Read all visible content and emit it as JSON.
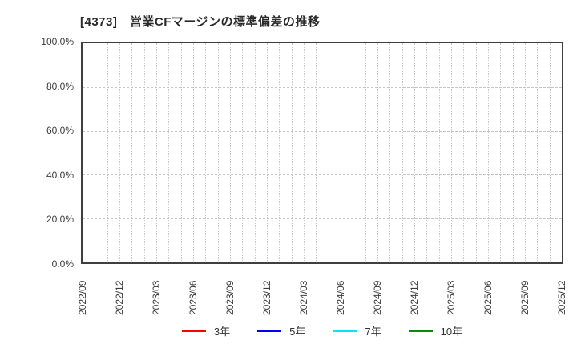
{
  "header": {
    "title": "[4373]　営業CFマージンの標準偏差の推移"
  },
  "chart_data": {
    "type": "line",
    "title": "[4373]　営業CFマージンの標準偏差の推移",
    "x_axis": {
      "tick_labels": [
        "2022/09",
        "2022/12",
        "2023/03",
        "2023/06",
        "2023/09",
        "2023/12",
        "2024/03",
        "2024/06",
        "2024/09",
        "2024/12",
        "2025/03",
        "2025/06",
        "2025/09",
        "2025/12"
      ],
      "months_per_tick": 3,
      "total_month_intervals": 39,
      "minor_gridlines": "monthly",
      "label_rotation_deg": 90
    },
    "y_axis": {
      "tick_labels": [
        "0.0%",
        "20.0%",
        "40.0%",
        "60.0%",
        "80.0%",
        "100.0%"
      ],
      "tick_values": [
        0,
        20,
        40,
        60,
        80,
        100
      ],
      "min": 0,
      "max": 100,
      "unit": "%"
    },
    "grid": true,
    "legend_position": "bottom",
    "series": [
      {
        "name": "3年",
        "color": "#ff0000",
        "x": [],
        "y": []
      },
      {
        "name": "5年",
        "color": "#0000ff",
        "x": [],
        "y": []
      },
      {
        "name": "7年",
        "color": "#00e5f0",
        "x": [],
        "y": []
      },
      {
        "name": "10年",
        "color": "#0a8a0a",
        "x": [],
        "y": []
      }
    ],
    "plot_has_data": false
  },
  "colors": {
    "plot_border": "#3f3f3f",
    "gridline": "#c8c8c8",
    "text": "#3c3c3c",
    "title_text": "#2a2a2a",
    "background": "#ffffff"
  }
}
